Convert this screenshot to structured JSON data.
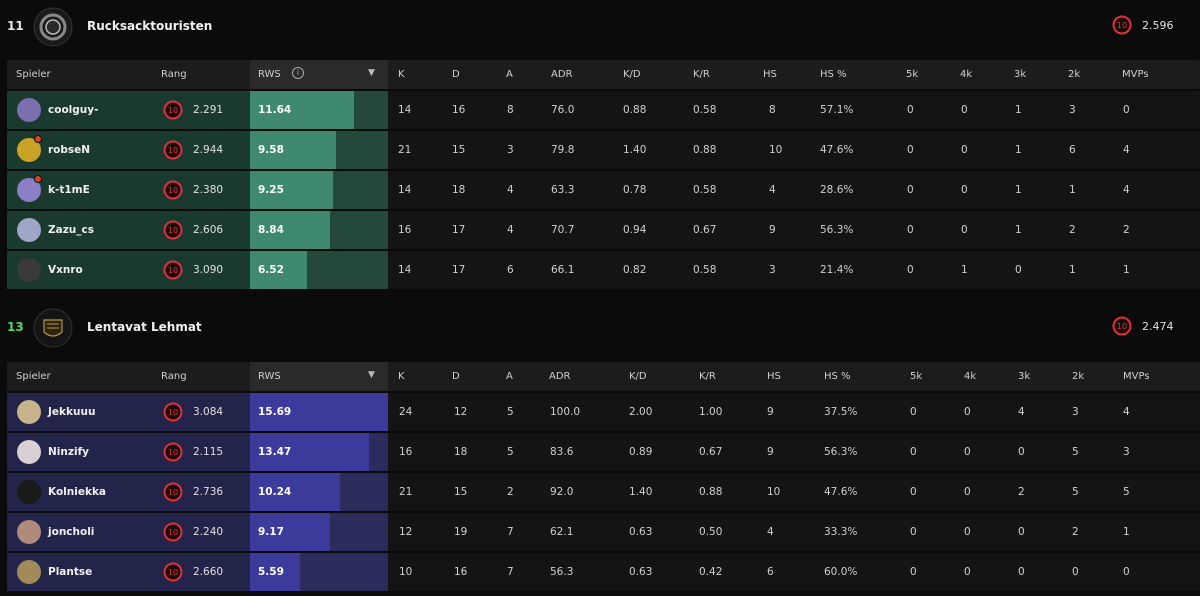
{
  "columns": [
    "Spieler",
    "Rang",
    "RWS",
    "K",
    "D",
    "A",
    "ADR",
    "K/D",
    "K/R",
    "HS",
    "HS %",
    "5k",
    "4k",
    "3k",
    "2k",
    "MVPs"
  ],
  "teams": [
    {
      "score": "11",
      "name": "Rucksacktouristen",
      "level": "10",
      "elo": "2.596",
      "won": false,
      "players": [
        {
          "name": "coolguy-",
          "level": "10",
          "elo": "2.291",
          "rws": "11.64",
          "rws_fraction": 0.75,
          "k": "14",
          "d": "16",
          "a": "8",
          "adr": "76.0",
          "kd": "0.88",
          "kr": "0.58",
          "hs": "8",
          "hsp": "57.1%",
          "k5": "0",
          "k4": "0",
          "k3": "1",
          "k2": "3",
          "mvps": "0",
          "badge": false,
          "avatar_color": "#7b6fb0"
        },
        {
          "name": "robseN",
          "level": "10",
          "elo": "2.944",
          "rws": "9.58",
          "rws_fraction": 0.62,
          "k": "21",
          "d": "15",
          "a": "3",
          "adr": "79.8",
          "kd": "1.40",
          "kr": "0.88",
          "hs": "10",
          "hsp": "47.6%",
          "k5": "0",
          "k4": "0",
          "k3": "1",
          "k2": "6",
          "mvps": "4",
          "badge": true,
          "avatar_color": "#c9a227"
        },
        {
          "name": "k-t1mE",
          "level": "10",
          "elo": "2.380",
          "rws": "9.25",
          "rws_fraction": 0.6,
          "k": "14",
          "d": "18",
          "a": "4",
          "adr": "63.3",
          "kd": "0.78",
          "kr": "0.58",
          "hs": "4",
          "hsp": "28.6%",
          "k5": "0",
          "k4": "0",
          "k3": "1",
          "k2": "1",
          "mvps": "4",
          "badge": true,
          "avatar_color": "#8a7fc4"
        },
        {
          "name": "Zazu_cs",
          "level": "10",
          "elo": "2.606",
          "rws": "8.84",
          "rws_fraction": 0.58,
          "k": "16",
          "d": "17",
          "a": "4",
          "adr": "70.7",
          "kd": "0.94",
          "kr": "0.67",
          "hs": "9",
          "hsp": "56.3%",
          "k5": "0",
          "k4": "0",
          "k3": "1",
          "k2": "2",
          "mvps": "2",
          "badge": false,
          "avatar_color": "#9fa6c8"
        },
        {
          "name": "Vxnro",
          "level": "10",
          "elo": "3.090",
          "rws": "6.52",
          "rws_fraction": 0.41,
          "k": "14",
          "d": "17",
          "a": "6",
          "adr": "66.1",
          "kd": "0.82",
          "kr": "0.58",
          "hs": "3",
          "hsp": "21.4%",
          "k5": "0",
          "k4": "1",
          "k3": "0",
          "k2": "1",
          "mvps": "1",
          "badge": false,
          "avatar_color": "#3a3a3a"
        }
      ]
    },
    {
      "score": "13",
      "name": "Lentavat Lehmat",
      "level": "10",
      "elo": "2.474",
      "won": true,
      "players": [
        {
          "name": "Jekkuuu",
          "level": "10",
          "elo": "3.084",
          "rws": "15.69",
          "rws_fraction": 1.0,
          "k": "24",
          "d": "12",
          "a": "5",
          "adr": "100.0",
          "kd": "2.00",
          "kr": "1.00",
          "hs": "9",
          "hsp": "37.5%",
          "k5": "0",
          "k4": "0",
          "k3": "4",
          "k2": "3",
          "mvps": "4",
          "badge": false,
          "avatar_color": "#c7b48a"
        },
        {
          "name": "Ninzify",
          "level": "10",
          "elo": "2.115",
          "rws": "13.47",
          "rws_fraction": 0.86,
          "k": "16",
          "d": "18",
          "a": "5",
          "adr": "83.6",
          "kd": "0.89",
          "kr": "0.67",
          "hs": "9",
          "hsp": "56.3%",
          "k5": "0",
          "k4": "0",
          "k3": "0",
          "k2": "5",
          "mvps": "3",
          "badge": false,
          "avatar_color": "#d9d0d3"
        },
        {
          "name": "Kolniekka",
          "level": "10",
          "elo": "2.736",
          "rws": "10.24",
          "rws_fraction": 0.65,
          "k": "21",
          "d": "15",
          "a": "2",
          "adr": "92.0",
          "kd": "1.40",
          "kr": "0.88",
          "hs": "10",
          "hsp": "47.6%",
          "k5": "0",
          "k4": "0",
          "k3": "2",
          "k2": "5",
          "mvps": "5",
          "badge": false,
          "avatar_color": "#1a1a1a"
        },
        {
          "name": "joncholi",
          "level": "10",
          "elo": "2.240",
          "rws": "9.17",
          "rws_fraction": 0.58,
          "k": "12",
          "d": "19",
          "a": "7",
          "adr": "62.1",
          "kd": "0.63",
          "kr": "0.50",
          "hs": "4",
          "hsp": "33.3%",
          "k5": "0",
          "k4": "0",
          "k3": "0",
          "k2": "2",
          "mvps": "1",
          "badge": false,
          "avatar_color": "#b08a7a"
        },
        {
          "name": "Plantse",
          "level": "10",
          "elo": "2.660",
          "rws": "5.59",
          "rws_fraction": 0.36,
          "k": "10",
          "d": "16",
          "a": "7",
          "adr": "56.3",
          "kd": "0.63",
          "kr": "0.42",
          "hs": "6",
          "hsp": "60.0%",
          "k5": "0",
          "k4": "0",
          "k3": "0",
          "k2": "0",
          "mvps": "0",
          "badge": false,
          "avatar_color": "#a08a5a"
        }
      ]
    }
  ]
}
